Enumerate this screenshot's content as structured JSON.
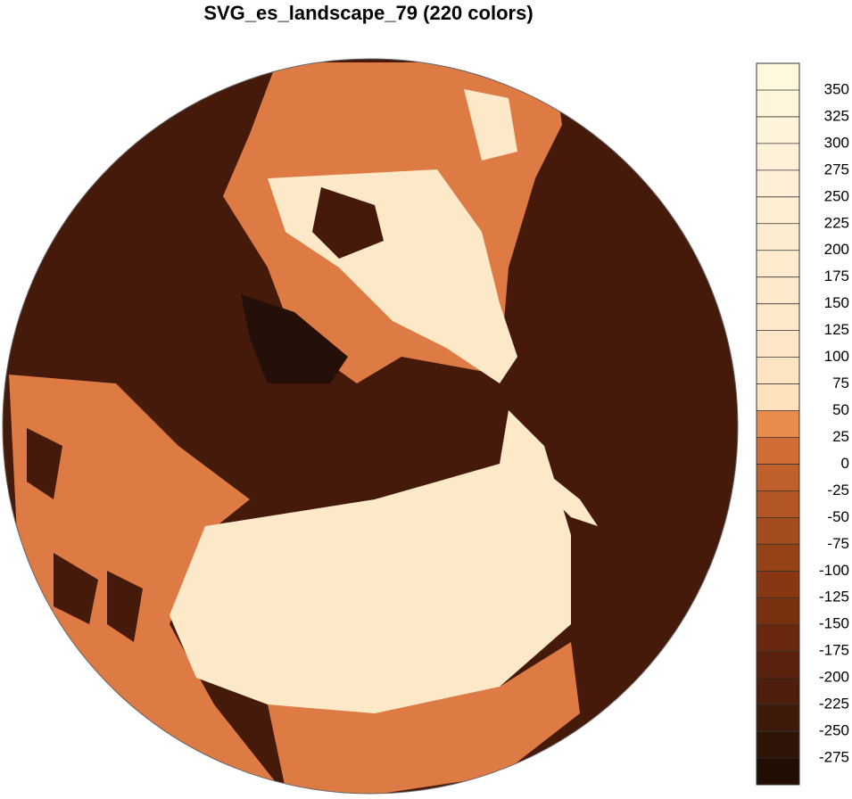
{
  "title": "SVG_es_landscape_79 (220 colors)",
  "colorbar": {
    "levels": [
      -275,
      -250,
      -225,
      -200,
      -175,
      -150,
      -125,
      -100,
      -75,
      -50,
      -25,
      0,
      25,
      50,
      75,
      100,
      125,
      150,
      175,
      200,
      225,
      250,
      275,
      300,
      325,
      350
    ],
    "colors": [
      "#200e05",
      "#2e1307",
      "#3d1909",
      "#4c1e0b",
      "#5a220c",
      "#69270e",
      "#78300f",
      "#873812",
      "#954217",
      "#a34c1d",
      "#b15624",
      "#c0612b",
      "#d06c34",
      "#e98a4e",
      "#fde2bd",
      "#fde4c1",
      "#fde6c5",
      "#fde8c9",
      "#fde9cb",
      "#feebce",
      "#feecd1",
      "#feeed4",
      "#feefd6",
      "#fff1d8",
      "#fff3da",
      "#fff5db",
      "#fff8dc"
    ]
  }
}
